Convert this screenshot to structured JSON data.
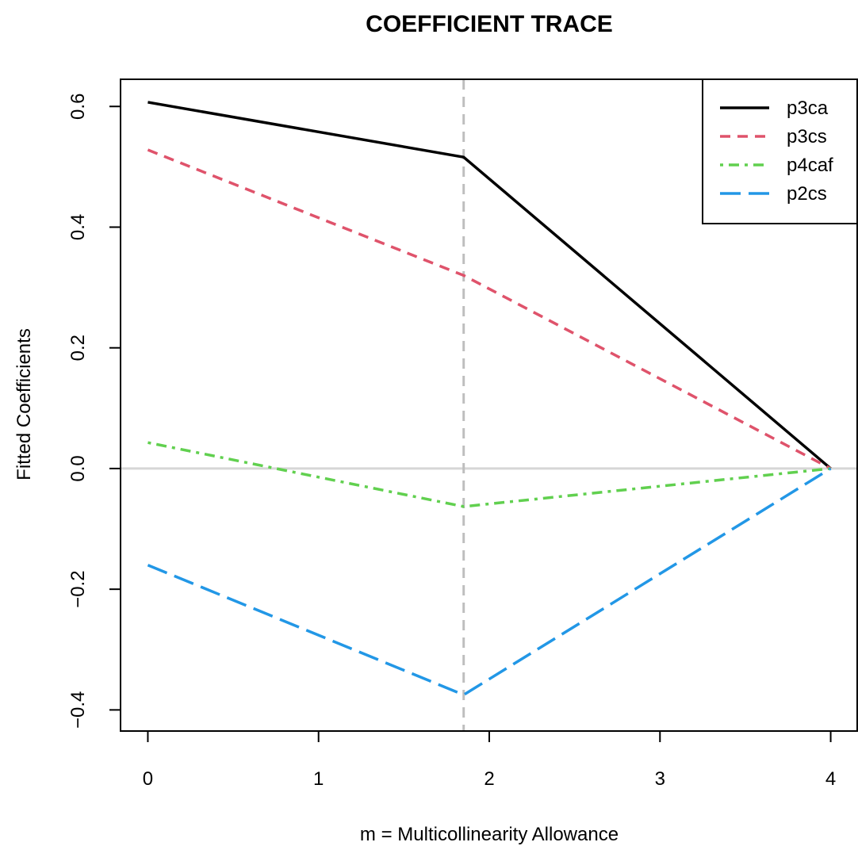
{
  "chart_data": {
    "type": "line",
    "title": "COEFFICIENT TRACE",
    "xlabel": "m = Multicollinearity Allowance",
    "ylabel": "Fitted Coefficients",
    "x": [
      0,
      1.85,
      4
    ],
    "xlim": [
      -0.16,
      4.16
    ],
    "ylim": [
      -0.435,
      0.645
    ],
    "xticks": [
      0,
      1,
      2,
      3,
      4
    ],
    "yticks": [
      -0.4,
      -0.2,
      0.0,
      0.2,
      0.4,
      0.6
    ],
    "ytick_labels": [
      "−0.4",
      "−0.2",
      "0.0",
      "0.2",
      "0.4",
      "0.6"
    ],
    "zero_line": true,
    "vline_x": 1.85,
    "legend_position": "top-right",
    "series": [
      {
        "name": "p3ca",
        "values": [
          0.607,
          0.516,
          0.0
        ],
        "color": "#000000",
        "dash": "solid"
      },
      {
        "name": "p3cs",
        "values": [
          0.528,
          0.32,
          0.0
        ],
        "color": "#DF536B",
        "dash": "dashed"
      },
      {
        "name": "p4caf",
        "values": [
          0.043,
          -0.063,
          0.0
        ],
        "color": "#61D04F",
        "dash": "dotdash"
      },
      {
        "name": "p2cs",
        "values": [
          -0.16,
          -0.375,
          0.0
        ],
        "color": "#2297E6",
        "dash": "longdash"
      }
    ]
  }
}
